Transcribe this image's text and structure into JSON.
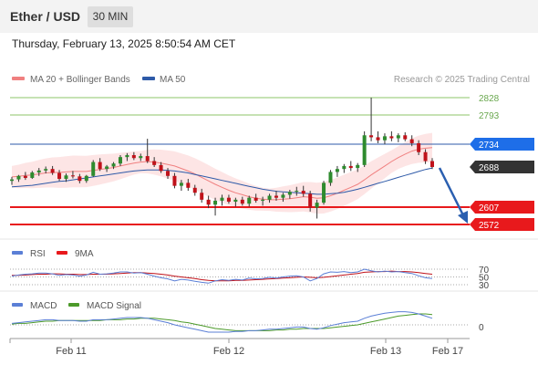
{
  "header": {
    "title": "Ether / USD",
    "interval": "30 MIN"
  },
  "datetime": "Thursday, February 13, 2025 8:50:54 AM CET",
  "colors": {
    "ma20": "#f08080",
    "ma50": "#2e5aa8",
    "bollinger_fill": "#fde0e0",
    "support": "#e8191c",
    "resistance_marker": "#1e6ee8",
    "resistance_green": "#8cc46a",
    "candle_up": "#2e8b2e",
    "candle_down": "#c0121a",
    "rsi": "#5b7fd6",
    "rsi_ma": "#c0121a",
    "macd": "#5b7fd6",
    "macd_signal": "#4c9a2a",
    "arrow": "#2a5fb0",
    "current_tag": "#333333"
  },
  "chart_data": {
    "type": "candlestick",
    "legend": [
      {
        "label": "MA 20 + Bollinger Bands",
        "color": "#f08080"
      },
      {
        "label": "MA 50",
        "color": "#2e5aa8"
      }
    ],
    "copyright": "Research © 2025 Trading Central",
    "x_ticks": [
      "Feb 11",
      "Feb 12",
      "Feb 13",
      "Feb 17"
    ],
    "levels": [
      {
        "value": 2828,
        "label": "2828",
        "kind": "resistance"
      },
      {
        "value": 2793,
        "label": "2793",
        "kind": "resistance"
      },
      {
        "value": 2734,
        "label": "2734",
        "kind": "pivot"
      },
      {
        "value": 2688,
        "label": "2688",
        "kind": "last"
      },
      {
        "value": 2607,
        "label": "2607",
        "kind": "support"
      },
      {
        "value": 2572,
        "label": "2572",
        "kind": "support"
      }
    ],
    "ylim": [
      2545,
      2850
    ],
    "candles": [
      [
        2660,
        2668,
        2652,
        2663
      ],
      [
        2663,
        2672,
        2658,
        2670
      ],
      [
        2670,
        2678,
        2662,
        2666
      ],
      [
        2666,
        2680,
        2664,
        2677
      ],
      [
        2677,
        2686,
        2670,
        2681
      ],
      [
        2681,
        2689,
        2675,
        2684
      ],
      [
        2684,
        2690,
        2672,
        2676
      ],
      [
        2676,
        2682,
        2660,
        2664
      ],
      [
        2664,
        2675,
        2658,
        2671
      ],
      [
        2671,
        2680,
        2665,
        2669
      ],
      [
        2669,
        2674,
        2655,
        2660
      ],
      [
        2660,
        2672,
        2656,
        2670
      ],
      [
        2670,
        2702,
        2668,
        2698
      ],
      [
        2698,
        2706,
        2680,
        2684
      ],
      [
        2684,
        2692,
        2678,
        2689
      ],
      [
        2689,
        2698,
        2684,
        2695
      ],
      [
        2695,
        2712,
        2690,
        2708
      ],
      [
        2708,
        2716,
        2700,
        2712
      ],
      [
        2712,
        2718,
        2702,
        2706
      ],
      [
        2706,
        2715,
        2700,
        2710
      ],
      [
        2710,
        2745,
        2696,
        2700
      ],
      [
        2700,
        2708,
        2688,
        2692
      ],
      [
        2692,
        2698,
        2676,
        2680
      ],
      [
        2680,
        2686,
        2664,
        2670
      ],
      [
        2670,
        2676,
        2645,
        2650
      ],
      [
        2650,
        2662,
        2640,
        2656
      ],
      [
        2656,
        2664,
        2640,
        2646
      ],
      [
        2646,
        2652,
        2630,
        2636
      ],
      [
        2636,
        2644,
        2616,
        2622
      ],
      [
        2622,
        2630,
        2605,
        2612
      ],
      [
        2612,
        2626,
        2590,
        2620
      ],
      [
        2620,
        2632,
        2610,
        2626
      ],
      [
        2626,
        2632,
        2614,
        2618
      ],
      [
        2618,
        2626,
        2608,
        2622
      ],
      [
        2622,
        2628,
        2610,
        2614
      ],
      [
        2614,
        2630,
        2608,
        2626
      ],
      [
        2626,
        2634,
        2616,
        2620
      ],
      [
        2620,
        2628,
        2610,
        2622
      ],
      [
        2622,
        2634,
        2616,
        2630
      ],
      [
        2630,
        2640,
        2620,
        2626
      ],
      [
        2626,
        2636,
        2618,
        2632
      ],
      [
        2632,
        2642,
        2624,
        2638
      ],
      [
        2638,
        2648,
        2630,
        2640
      ],
      [
        2640,
        2650,
        2628,
        2634
      ],
      [
        2634,
        2640,
        2598,
        2606
      ],
      [
        2606,
        2622,
        2584,
        2616
      ],
      [
        2616,
        2660,
        2612,
        2656
      ],
      [
        2656,
        2682,
        2650,
        2678
      ],
      [
        2678,
        2690,
        2668,
        2684
      ],
      [
        2684,
        2694,
        2676,
        2690
      ],
      [
        2690,
        2700,
        2680,
        2686
      ],
      [
        2686,
        2696,
        2678,
        2692
      ],
      [
        2692,
        2760,
        2688,
        2752
      ],
      [
        2752,
        2828,
        2740,
        2748
      ],
      [
        2748,
        2760,
        2736,
        2742
      ],
      [
        2742,
        2756,
        2734,
        2750
      ],
      [
        2750,
        2760,
        2740,
        2746
      ],
      [
        2746,
        2756,
        2738,
        2752
      ],
      [
        2752,
        2758,
        2740,
        2744
      ],
      [
        2744,
        2752,
        2730,
        2736
      ],
      [
        2736,
        2742,
        2712,
        2718
      ],
      [
        2718,
        2724,
        2694,
        2700
      ],
      [
        2700,
        2706,
        2684,
        2688
      ]
    ],
    "ma20": [
      2668,
      2669,
      2671,
      2672,
      2674,
      2676,
      2677,
      2677,
      2678,
      2679,
      2679,
      2679,
      2681,
      2683,
      2685,
      2687,
      2690,
      2693,
      2696,
      2698,
      2699,
      2698,
      2696,
      2693,
      2690,
      2685,
      2680,
      2674,
      2667,
      2660,
      2653,
      2647,
      2641,
      2636,
      2632,
      2628,
      2625,
      2623,
      2622,
      2622,
      2623,
      2624,
      2626,
      2628,
      2627,
      2625,
      2626,
      2630,
      2635,
      2641,
      2647,
      2653,
      2662,
      2672,
      2681,
      2690,
      2699,
      2707,
      2714,
      2720,
      2724,
      2726,
      2727
    ],
    "ma50": [
      2648,
      2649,
      2650,
      2651,
      2653,
      2655,
      2657,
      2659,
      2660,
      2662,
      2664,
      2666,
      2668,
      2670,
      2672,
      2674,
      2676,
      2678,
      2680,
      2681,
      2682,
      2682,
      2682,
      2681,
      2680,
      2678,
      2676,
      2673,
      2670,
      2667,
      2664,
      2661,
      2658,
      2655,
      2652,
      2649,
      2646,
      2643,
      2641,
      2639,
      2638,
      2637,
      2636,
      2635,
      2634,
      2633,
      2633,
      2634,
      2635,
      2637,
      2640,
      2643,
      2647,
      2651,
      2655,
      2659,
      2663,
      2667,
      2671,
      2675,
      2679,
      2683,
      2686
    ],
    "rsi": {
      "label": "RSI",
      "ma_label": "9MA",
      "levels": [
        "70",
        "50",
        "30"
      ],
      "values": [
        52,
        55,
        57,
        58,
        60,
        60,
        58,
        54,
        56,
        55,
        52,
        55,
        62,
        57,
        58,
        60,
        63,
        63,
        60,
        61,
        57,
        52,
        48,
        45,
        40,
        44,
        42,
        39,
        36,
        34,
        40,
        43,
        41,
        44,
        42,
        47,
        45,
        46,
        49,
        47,
        50,
        52,
        53,
        50,
        40,
        46,
        58,
        63,
        62,
        64,
        61,
        63,
        70,
        66,
        63,
        65,
        63,
        64,
        61,
        59,
        53,
        48,
        46
      ],
      "ma_values": [
        54,
        54,
        55,
        56,
        57,
        57,
        58,
        58,
        57,
        57,
        56,
        56,
        57,
        57,
        57,
        58,
        59,
        60,
        61,
        61,
        60,
        59,
        57,
        55,
        52,
        50,
        48,
        46,
        43,
        41,
        40,
        40,
        40,
        41,
        41,
        42,
        43,
        44,
        45,
        46,
        47,
        48,
        49,
        50,
        49,
        48,
        49,
        51,
        53,
        55,
        57,
        59,
        62,
        63,
        64,
        64,
        65,
        64,
        64,
        63,
        61,
        59,
        57
      ]
    },
    "macd": {
      "label": "MACD",
      "signal_label": "MACD Signal",
      "zero_label": "0",
      "values": [
        2,
        3,
        4,
        5,
        6,
        7,
        7,
        6,
        6,
        6,
        5,
        5,
        7,
        7,
        7,
        8,
        9,
        10,
        10,
        10,
        9,
        7,
        5,
        3,
        0,
        -2,
        -4,
        -6,
        -8,
        -10,
        -10,
        -10,
        -10,
        -9,
        -9,
        -8,
        -8,
        -7,
        -6,
        -6,
        -5,
        -4,
        -3,
        -3,
        -5,
        -6,
        -4,
        -1,
        1,
        3,
        4,
        5,
        9,
        12,
        14,
        16,
        17,
        18,
        18,
        17,
        15,
        12,
        9
      ],
      "signal": [
        1,
        2,
        2,
        3,
        4,
        5,
        5,
        6,
        6,
        6,
        6,
        6,
        6,
        6,
        7,
        7,
        7,
        8,
        8,
        9,
        9,
        9,
        8,
        7,
        6,
        4,
        3,
        1,
        -1,
        -3,
        -5,
        -6,
        -7,
        -8,
        -8,
        -8,
        -8,
        -8,
        -8,
        -7,
        -7,
        -6,
        -6,
        -5,
        -5,
        -5,
        -5,
        -4,
        -3,
        -2,
        -1,
        0,
        2,
        4,
        6,
        8,
        10,
        12,
        13,
        14,
        15,
        15,
        14
      ]
    }
  }
}
